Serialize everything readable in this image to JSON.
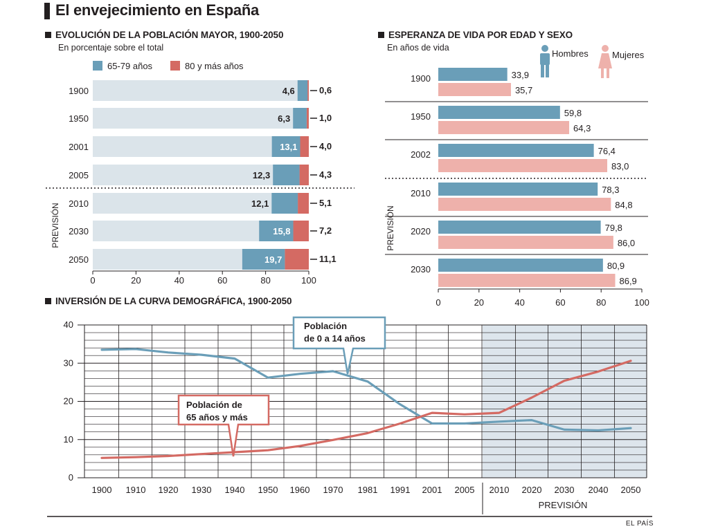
{
  "main_title": "El envejecimiento en España",
  "source": "EL PAÍS",
  "colors": {
    "teal": "#6a9eb8",
    "red": "#d46a63",
    "track": "#dbe4ea",
    "pink": "#eeb1ab",
    "proj": "#dde5ec"
  },
  "chart_data": [
    {
      "id": "poblacion_mayor",
      "type": "bar",
      "stacked": true,
      "title": "EVOLUCIÓN DE LA POBLACIÓN MAYOR, 1900-2050",
      "subtitle": "En porcentaje sobre el total",
      "projection_label": "PREVISIÓN",
      "projection_from": "2010",
      "orientation": "horizontal",
      "categories": [
        "1900",
        "1950",
        "2001",
        "2005",
        "2010",
        "2030",
        "2050"
      ],
      "series": [
        {
          "name": "65-79 años",
          "color": "#6a9eb8",
          "values": [
            4.6,
            6.3,
            13.1,
            12.3,
            12.1,
            15.8,
            19.7
          ],
          "labels": [
            "4,6",
            "6,3",
            "13,1",
            "12,3",
            "12,1",
            "15,8",
            "19,7"
          ]
        },
        {
          "name": "80 y más años",
          "color": "#d46a63",
          "values": [
            0.6,
            1.0,
            4.0,
            4.3,
            5.1,
            7.2,
            11.1
          ],
          "labels": [
            "0,6",
            "1,0",
            "4,0",
            "4,3",
            "5,1",
            "7,2",
            "11,1"
          ]
        }
      ],
      "xlim": [
        0,
        100
      ],
      "xticks": [
        "0",
        "20",
        "40",
        "60",
        "80",
        "100"
      ]
    },
    {
      "id": "esperanza_vida",
      "type": "bar",
      "title": "ESPERANZA DE VIDA POR EDAD Y SEXO",
      "subtitle": "En años de vida",
      "projection_label": "PREVISIÓN",
      "projection_from": "2010",
      "orientation": "horizontal",
      "categories": [
        "1900",
        "1950",
        "2002",
        "2010",
        "2020",
        "2030"
      ],
      "series": [
        {
          "name": "Hombres",
          "color": "#6a9eb8",
          "values": [
            33.9,
            59.8,
            76.4,
            78.3,
            79.8,
            80.9
          ],
          "labels": [
            "33,9",
            "59,8",
            "76,4",
            "78,3",
            "79,8",
            "80,9"
          ]
        },
        {
          "name": "Mujeres",
          "color": "#eeb1ab",
          "values": [
            35.7,
            64.3,
            83.0,
            84.8,
            86.0,
            86.9
          ],
          "labels": [
            "35,7",
            "64,3",
            "83,0",
            "84,8",
            "86,0",
            "86,9"
          ]
        }
      ],
      "xlim": [
        0,
        100
      ],
      "xticks": [
        "0",
        "20",
        "40",
        "60",
        "80",
        "100"
      ]
    },
    {
      "id": "curva_demografica",
      "type": "line",
      "title": "INVERSIÓN DE LA CURVA DEMOGRÁFICA, 1900-2050",
      "projection_label": "PREVISIÓN",
      "projection_from": "2010",
      "categories": [
        "1900",
        "1910",
        "1920",
        "1930",
        "1940",
        "1950",
        "1960",
        "1970",
        "1981",
        "1991",
        "2001",
        "2005",
        "2010",
        "2020",
        "2030",
        "2040",
        "2050"
      ],
      "series": [
        {
          "name": "Población de 0 a 14 años",
          "color": "#6a9eb8",
          "values": [
            33.5,
            33.7,
            32.8,
            32.2,
            31.2,
            26.2,
            27.2,
            27.9,
            25.2,
            19.2,
            14.2,
            14.2,
            14.7,
            15.1,
            12.6,
            12.4,
            13.0
          ]
        },
        {
          "name": "Población de 65 años y más",
          "color": "#d46a63",
          "values": [
            5.2,
            5.4,
            5.7,
            6.2,
            6.7,
            7.2,
            8.3,
            9.9,
            11.7,
            14.2,
            17.0,
            16.6,
            17.0,
            21.0,
            25.4,
            27.8,
            30.6
          ]
        }
      ],
      "ylim": [
        0,
        40
      ],
      "yticks": [
        "0",
        "10",
        "20",
        "30",
        "40"
      ]
    }
  ]
}
